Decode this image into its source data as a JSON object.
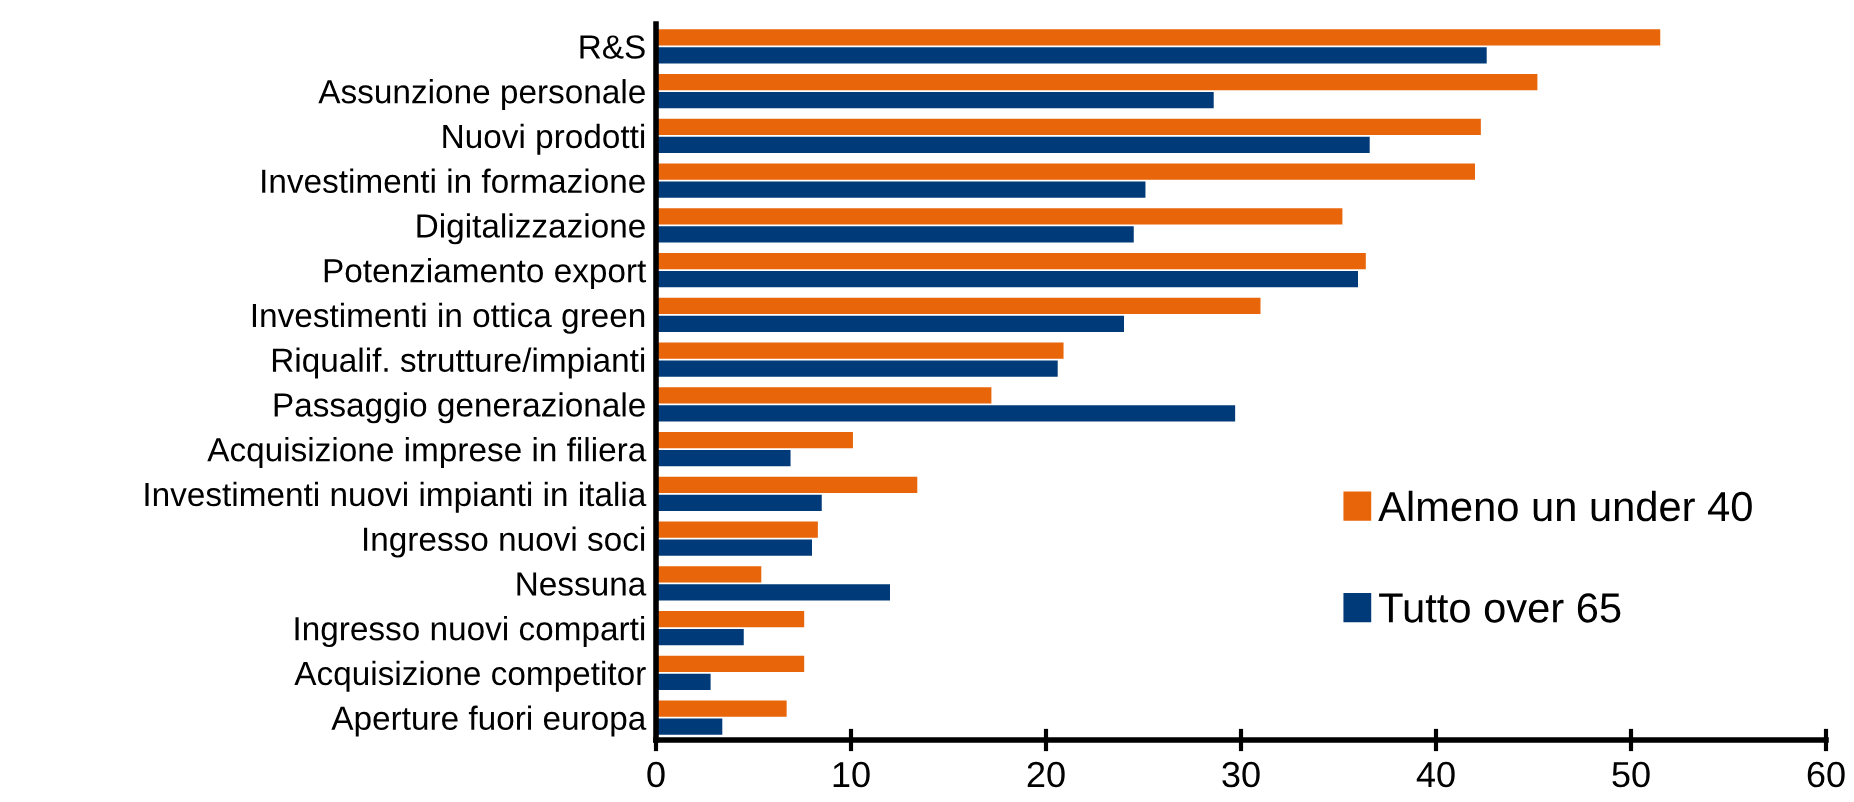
{
  "chart_data": {
    "type": "bar",
    "orientation": "horizontal",
    "categories": [
      "R&S",
      "Assunzione personale",
      "Nuovi prodotti",
      "Investimenti in formazione",
      "Digitalizzazione",
      "Potenziamento export",
      "Investimenti in ottica green",
      "Riqualif. strutture/impianti",
      "Passaggio generazionale",
      "Acquisizione imprese in filiera",
      "Investimenti nuovi impianti in italia",
      "Ingresso nuovi soci",
      "Nessuna",
      "Ingresso nuovi comparti",
      "Acquisizione competitor",
      "Aperture fuori europa"
    ],
    "series": [
      {
        "name": "Almeno un under 40",
        "color": "#e8650a",
        "values": [
          51.5,
          45.2,
          42.3,
          42.0,
          35.2,
          36.4,
          31.0,
          20.9,
          17.2,
          10.1,
          13.4,
          8.3,
          5.4,
          7.6,
          7.6,
          6.7
        ]
      },
      {
        "name": "Tutto over 65",
        "color": "#003a78",
        "values": [
          42.6,
          28.6,
          36.6,
          25.1,
          24.5,
          36.0,
          24.0,
          20.6,
          29.7,
          6.9,
          8.5,
          8.0,
          12.0,
          4.5,
          2.8,
          3.4
        ]
      }
    ],
    "xlim": [
      0,
      60
    ],
    "xticks": [
      0,
      10,
      20,
      30,
      40,
      50,
      60
    ],
    "grid": false,
    "legend": "bottom right"
  }
}
